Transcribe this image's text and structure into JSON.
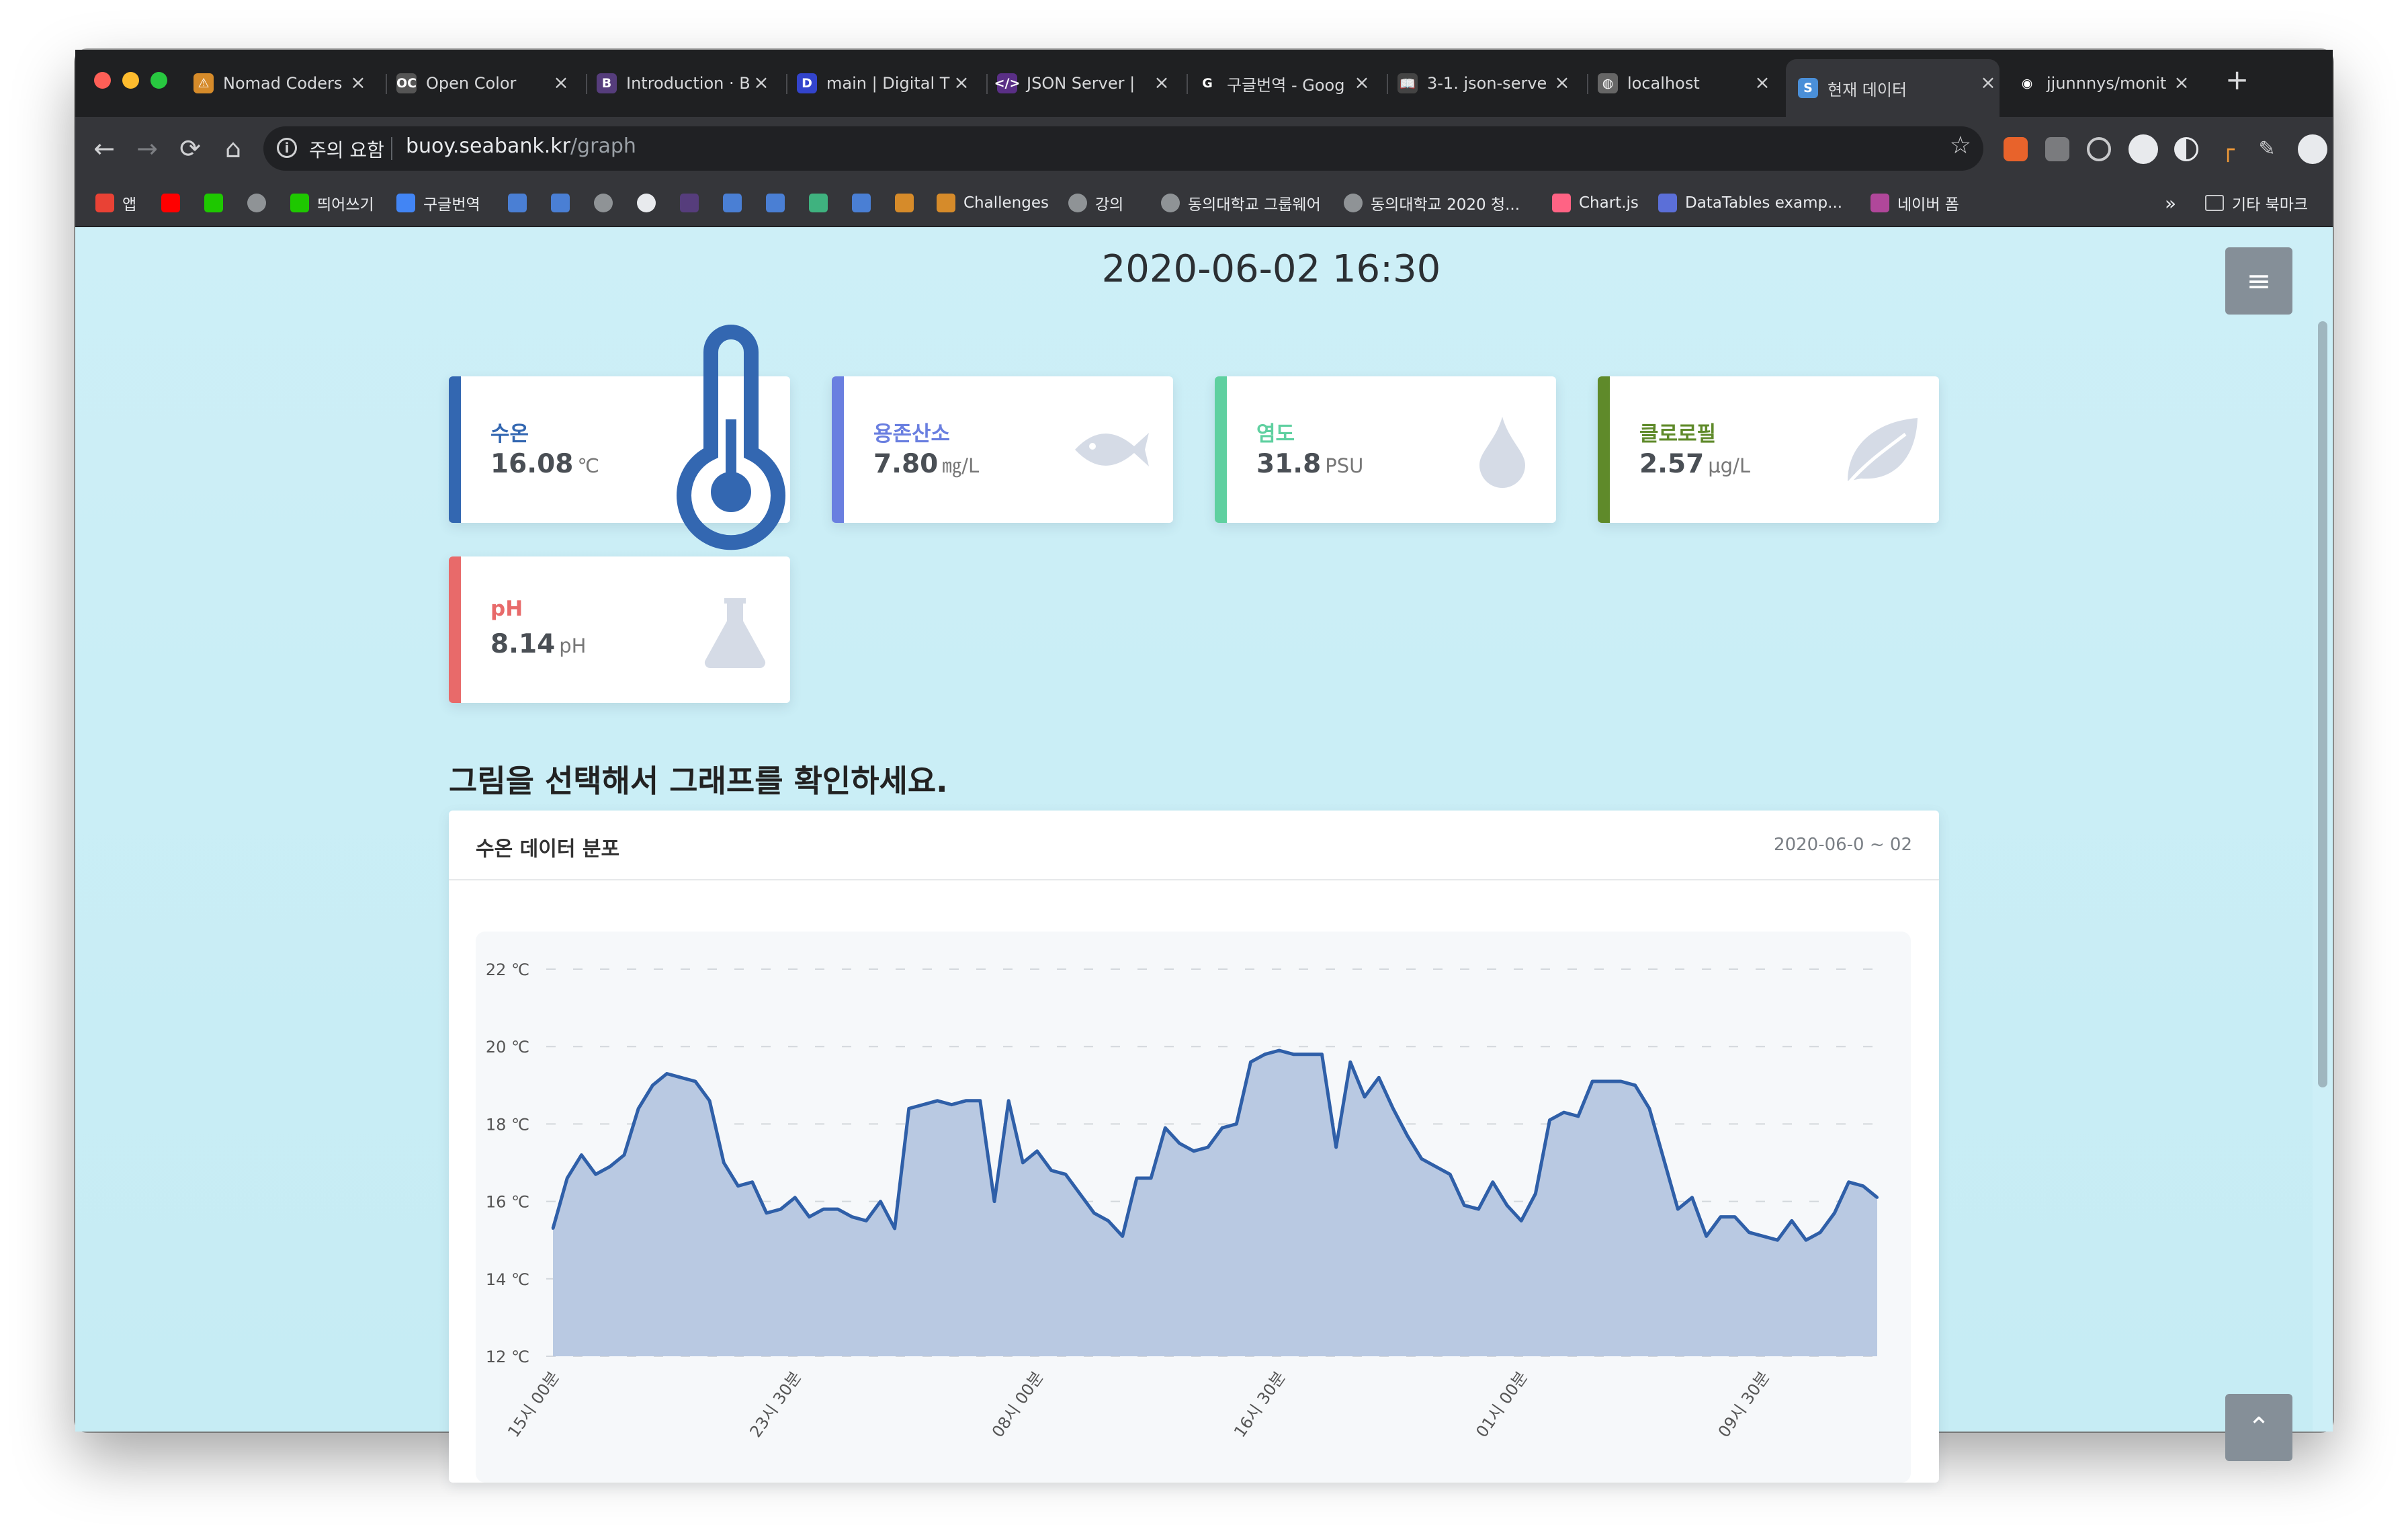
{
  "browser": {
    "tabs": [
      {
        "title": "Nomad Coders",
        "icon": "nomad-icon",
        "color": "#d68b2a",
        "glyph": "⚠"
      },
      {
        "title": "Open Color",
        "icon": "open-color-icon",
        "color": "#555555",
        "glyph": "OC"
      },
      {
        "title": "Introduction · B",
        "icon": "bootstrap-icon",
        "color": "#563d7c",
        "glyph": "B"
      },
      {
        "title": "main | Digital T",
        "icon": "digital-icon",
        "color": "#3344cc",
        "glyph": "D"
      },
      {
        "title": "JSON Server | ",
        "icon": "json-server-icon",
        "color": "#5a2f86",
        "glyph": "</>"
      },
      {
        "title": "구글번역 - Goog",
        "icon": "google-icon",
        "color": "#ffffff",
        "glyph": "G"
      },
      {
        "title": "3-1. json-serve",
        "icon": "book-icon",
        "color": "#444444",
        "glyph": "📖"
      },
      {
        "title": "localhost",
        "icon": "globe-icon",
        "color": "#666666",
        "glyph": "◍"
      },
      {
        "title": "현재 데이터",
        "icon": "seabank-icon",
        "color": "#4a8fd8",
        "glyph": "S"
      },
      {
        "title": "jjunnnys/monit",
        "icon": "github-icon",
        "color": "#ffffff",
        "glyph": "◉"
      }
    ],
    "active_tab": 8,
    "address": {
      "warning": "주의 요함",
      "host": "buoy.seabank.kr",
      "path": "/graph"
    },
    "bookmarks": [
      {
        "label": "앱",
        "icon": "apps-icon"
      },
      {
        "label": "",
        "icon": "youtube-icon"
      },
      {
        "label": "",
        "icon": "naver-icon"
      },
      {
        "label": "",
        "icon": "globe-icon"
      },
      {
        "label": "띄어쓰기",
        "icon": "naver-icon"
      },
      {
        "label": "구글번역",
        "icon": "google-icon"
      },
      {
        "label": "",
        "icon": "bookmark-icon"
      },
      {
        "label": "",
        "icon": "bookmark-icon"
      },
      {
        "label": "",
        "icon": "globe-icon"
      },
      {
        "label": "",
        "icon": "github-icon"
      },
      {
        "label": "",
        "icon": "bootstrap-icon"
      },
      {
        "label": "",
        "icon": "bookmark-icon"
      },
      {
        "label": "",
        "icon": "bookmark-icon"
      },
      {
        "label": "",
        "icon": "vue-icon"
      },
      {
        "label": "",
        "icon": "bookmark-icon"
      },
      {
        "label": "",
        "icon": "nomad-icon"
      },
      {
        "label": "Challenges",
        "icon": "nomad-icon"
      },
      {
        "label": "강의",
        "icon": "globe-icon"
      },
      {
        "label": "동의대학교 그룹웨어",
        "icon": "globe-icon"
      },
      {
        "label": "동의대학교 2020 청...",
        "icon": "globe-icon"
      },
      {
        "label": "Chart.js",
        "icon": "chartjs-icon"
      },
      {
        "label": "DataTables examp...",
        "icon": "datatables-icon"
      },
      {
        "label": "네이버 폼",
        "icon": "naver-form-icon"
      }
    ],
    "more": "»",
    "other_bookmarks": "기타 북마크"
  },
  "page": {
    "datetime": "2020-06-02 16:30",
    "cards": [
      {
        "label": "수온",
        "value": "16.08",
        "unit": "℃",
        "color": "#3367b1",
        "icon": "thermometer-icon"
      },
      {
        "label": "용존산소",
        "value": "7.80",
        "unit": "㎎/L",
        "color": "#6a7fe0",
        "icon": "fish-icon"
      },
      {
        "label": "염도",
        "value": "31.8",
        "unit": "PSU",
        "color": "#5fd0a0",
        "icon": "water-drop-icon"
      },
      {
        "label": "클로로필",
        "value": "2.57",
        "unit": "μg/L",
        "color": "#5f8a2a",
        "icon": "leaf-icon"
      },
      {
        "label": "pH",
        "value": "8.14",
        "unit": "pH",
        "color": "#e86a6a",
        "icon": "flask-icon"
      }
    ],
    "section_title": "그림을 선택해서 그래프를 확인하세요.",
    "chart_title": "수온 데이터 분포",
    "chart_range": "2020-06-0 ~ 02"
  },
  "chart_data": {
    "type": "area",
    "title": "수온 데이터 분포",
    "xlabel": "",
    "ylabel": "",
    "ylim": [
      12,
      22
    ],
    "yticks": [
      12,
      14,
      16,
      18,
      20,
      22
    ],
    "ytick_labels": [
      "12 ℃",
      "14 ℃",
      "16 ℃",
      "18 ℃",
      "20 ℃",
      "22 ℃"
    ],
    "xtick_labels": [
      "15시 00분",
      "23시 30분",
      "08시 00분",
      "16시 30분",
      "01시 00분",
      "09시 30분"
    ],
    "xtick_index": [
      0,
      17,
      34,
      51,
      68,
      85
    ],
    "grid": true,
    "color": "#2f5fa8",
    "fill": "#b9c9e2",
    "values": [
      15.3,
      16.6,
      17.2,
      16.7,
      16.9,
      17.2,
      18.4,
      19.0,
      19.3,
      19.2,
      19.1,
      18.6,
      17.0,
      16.4,
      16.5,
      15.7,
      15.8,
      16.1,
      15.6,
      15.8,
      15.8,
      15.6,
      15.5,
      16.0,
      15.3,
      18.4,
      18.5,
      18.6,
      18.5,
      18.6,
      18.6,
      16.0,
      18.6,
      17.0,
      17.3,
      16.8,
      16.7,
      16.2,
      15.7,
      15.5,
      15.1,
      16.6,
      16.6,
      17.9,
      17.5,
      17.3,
      17.4,
      17.9,
      18.0,
      19.6,
      19.8,
      19.9,
      19.8,
      19.8,
      19.8,
      17.4,
      19.6,
      18.7,
      19.2,
      18.4,
      17.7,
      17.1,
      16.9,
      16.7,
      15.9,
      15.8,
      16.5,
      15.9,
      15.5,
      16.2,
      18.1,
      18.3,
      18.2,
      19.1,
      19.1,
      19.1,
      19.0,
      18.4,
      17.1,
      15.8,
      16.1,
      15.1,
      15.6,
      15.6,
      15.2,
      15.1,
      15.0,
      15.5,
      15.0,
      15.2,
      15.7,
      16.5,
      16.4,
      16.1
    ]
  }
}
